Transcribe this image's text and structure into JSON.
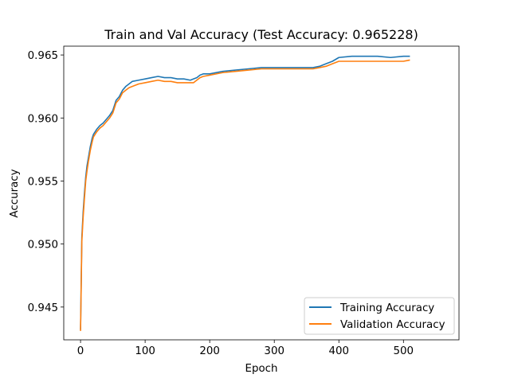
{
  "chart_data": {
    "type": "line",
    "title": "Train and Val Accuracy (Test Accuracy: 0.965228)",
    "xlabel": "Epoch",
    "ylabel": "Accuracy",
    "xlim": [
      -26,
      586
    ],
    "ylim": [
      0.9424,
      0.9657
    ],
    "xticks": [
      0,
      100,
      200,
      300,
      400,
      500
    ],
    "yticks": [
      0.945,
      0.95,
      0.955,
      0.96,
      0.965
    ],
    "ytick_labels": [
      "0.945",
      "0.950",
      "0.955",
      "0.960",
      "0.965"
    ],
    "grid": false,
    "legend_position": "lower-right",
    "series": [
      {
        "name": "Training Accuracy",
        "color": "#1f77b4",
        "x": [
          0,
          2,
          4,
          6,
          8,
          10,
          12,
          15,
          18,
          20,
          25,
          30,
          35,
          40,
          45,
          50,
          55,
          60,
          65,
          70,
          75,
          80,
          90,
          100,
          110,
          120,
          130,
          140,
          150,
          160,
          170,
          175,
          180,
          185,
          190,
          200,
          220,
          240,
          260,
          280,
          300,
          320,
          340,
          360,
          370,
          380,
          390,
          400,
          420,
          440,
          460,
          480,
          500,
          510
        ],
        "y": [
          0.9432,
          0.9505,
          0.9525,
          0.954,
          0.9553,
          0.9562,
          0.9568,
          0.9577,
          0.9584,
          0.9587,
          0.9591,
          0.9594,
          0.9596,
          0.9599,
          0.9602,
          0.9606,
          0.9614,
          0.9617,
          0.9622,
          0.9625,
          0.9627,
          0.9629,
          0.963,
          0.9631,
          0.9632,
          0.9633,
          0.9632,
          0.9632,
          0.9631,
          0.9631,
          0.963,
          0.9631,
          0.9632,
          0.9634,
          0.9635,
          0.9635,
          0.9637,
          0.9638,
          0.9639,
          0.964,
          0.964,
          0.964,
          0.964,
          0.964,
          0.9641,
          0.9643,
          0.9645,
          0.9648,
          0.9649,
          0.9649,
          0.9649,
          0.9648,
          0.9649,
          0.9649
        ]
      },
      {
        "name": "Validation Accuracy",
        "color": "#ff7f0e",
        "x": [
          0,
          2,
          4,
          6,
          8,
          10,
          12,
          15,
          18,
          20,
          25,
          30,
          35,
          40,
          45,
          50,
          55,
          60,
          65,
          70,
          75,
          80,
          90,
          100,
          110,
          120,
          130,
          140,
          150,
          160,
          170,
          175,
          180,
          185,
          190,
          200,
          220,
          240,
          260,
          280,
          300,
          320,
          340,
          360,
          370,
          380,
          390,
          400,
          420,
          440,
          460,
          480,
          500,
          510
        ],
        "y": [
          0.9431,
          0.9502,
          0.9521,
          0.9536,
          0.955,
          0.9558,
          0.9565,
          0.9574,
          0.9581,
          0.9585,
          0.9589,
          0.9592,
          0.9594,
          0.9597,
          0.96,
          0.9604,
          0.9612,
          0.9615,
          0.962,
          0.9622,
          0.9624,
          0.9625,
          0.9627,
          0.9628,
          0.9629,
          0.963,
          0.9629,
          0.9629,
          0.9628,
          0.9628,
          0.9628,
          0.9628,
          0.963,
          0.9632,
          0.9633,
          0.9634,
          0.9636,
          0.9637,
          0.9638,
          0.9639,
          0.9639,
          0.9639,
          0.9639,
          0.9639,
          0.964,
          0.9641,
          0.9643,
          0.9645,
          0.9645,
          0.9645,
          0.9645,
          0.9645,
          0.9645,
          0.9646
        ]
      }
    ]
  }
}
